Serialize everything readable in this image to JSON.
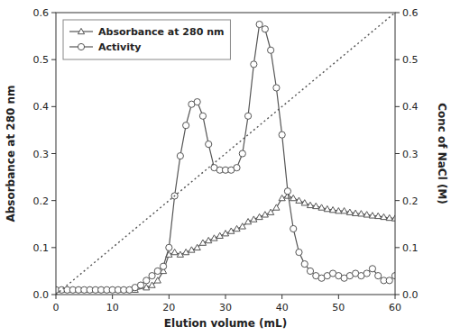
{
  "chart_data": {
    "type": "line",
    "xlabel": "Elution volume (mL)",
    "ylabel": "Absorbance at 280 nm",
    "y2label": "Conc of NaCl (M)",
    "xlim": [
      0,
      60
    ],
    "ylim": [
      0,
      0.6
    ],
    "y2lim": [
      0,
      0.6
    ],
    "xticks": [
      0,
      10,
      20,
      30,
      40,
      50,
      60
    ],
    "yticks": [
      {
        "value": 0.0,
        "label": "0.0"
      },
      0.1,
      0.2,
      0.3,
      0.4,
      0.5,
      0.6
    ],
    "y2ticks": [
      {
        "value": 0.0,
        "label": "0.0"
      },
      0.1,
      0.2,
      0.3,
      0.4,
      0.5,
      0.6
    ],
    "legend": "upper left",
    "grid": false,
    "series": [
      {
        "name": "Absorbance at 280 nm",
        "color": "#555555",
        "marker": "triangle",
        "line_style": "solid",
        "x": [
          0,
          2,
          4,
          6,
          8,
          10,
          12,
          14,
          16,
          17,
          18,
          19,
          20,
          21,
          22,
          23,
          24,
          25,
          26,
          27,
          28,
          29,
          30,
          31,
          32,
          33,
          34,
          35,
          36,
          37,
          38,
          39,
          40,
          41,
          42,
          43,
          44,
          45,
          46,
          47,
          48,
          49,
          50,
          51,
          52,
          53,
          54,
          55,
          56,
          57,
          58,
          59,
          60
        ],
        "values": [
          0.01,
          0.01,
          0.01,
          0.01,
          0.01,
          0.01,
          0.01,
          0.01,
          0.015,
          0.02,
          0.03,
          0.05,
          0.085,
          0.09,
          0.085,
          0.09,
          0.095,
          0.1,
          0.11,
          0.115,
          0.12,
          0.125,
          0.13,
          0.135,
          0.14,
          0.145,
          0.155,
          0.16,
          0.165,
          0.17,
          0.175,
          0.185,
          0.205,
          0.21,
          0.205,
          0.2,
          0.195,
          0.19,
          0.188,
          0.185,
          0.182,
          0.18,
          0.178,
          0.178,
          0.175,
          0.173,
          0.172,
          0.17,
          0.168,
          0.167,
          0.165,
          0.163,
          0.162
        ]
      },
      {
        "name": "Activity",
        "color": "#555555",
        "marker": "circle",
        "line_style": "solid",
        "x": [
          0,
          1,
          2,
          3,
          4,
          5,
          6,
          7,
          8,
          9,
          10,
          11,
          12,
          13,
          14,
          15,
          16,
          17,
          18,
          19,
          20,
          21,
          22,
          23,
          24,
          25,
          26,
          27,
          28,
          29,
          30,
          31,
          32,
          33,
          34,
          35,
          36,
          37,
          38,
          39,
          40,
          41,
          42,
          43,
          44,
          45,
          46,
          47,
          48,
          49,
          50,
          51,
          52,
          53,
          54,
          55,
          56,
          57,
          58,
          59,
          60
        ],
        "values": [
          0.01,
          0.01,
          0.01,
          0.01,
          0.01,
          0.01,
          0.01,
          0.01,
          0.01,
          0.01,
          0.01,
          0.01,
          0.01,
          0.01,
          0.015,
          0.02,
          0.03,
          0.04,
          0.05,
          0.06,
          0.1,
          0.21,
          0.295,
          0.36,
          0.405,
          0.41,
          0.38,
          0.32,
          0.27,
          0.265,
          0.265,
          0.265,
          0.27,
          0.3,
          0.38,
          0.49,
          0.575,
          0.565,
          0.52,
          0.44,
          0.34,
          0.22,
          0.14,
          0.09,
          0.065,
          0.05,
          0.04,
          0.035,
          0.04,
          0.045,
          0.04,
          0.035,
          0.04,
          0.045,
          0.04,
          0.045,
          0.055,
          0.04,
          0.03,
          0.03,
          0.04
        ]
      },
      {
        "color": "#555555",
        "marker": "none",
        "line_style": "dotted",
        "axis": "y2",
        "x": [
          0,
          60
        ],
        "values": [
          0.0,
          0.6
        ]
      }
    ]
  }
}
